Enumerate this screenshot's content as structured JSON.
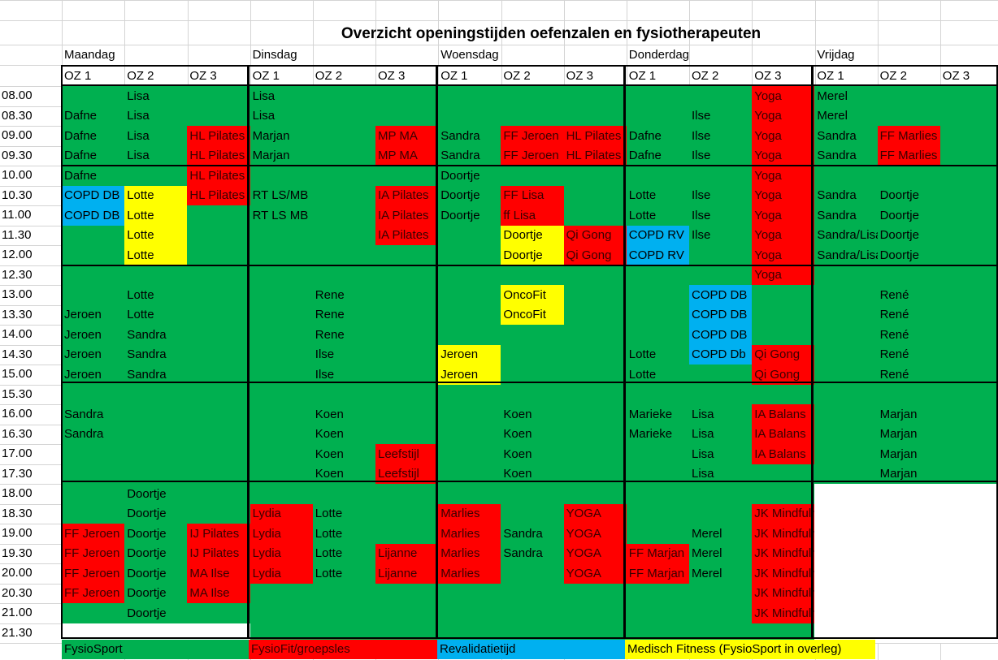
{
  "title": "Overzicht openingstijden oefenzalen en fysiotherapeuten",
  "days": [
    "Maandag",
    "Dinsdag",
    "Woensdag",
    "Donderdag",
    "Vrijdag"
  ],
  "zones": [
    "OZ 1",
    "OZ 2",
    "OZ 3"
  ],
  "times": [
    "08.00",
    "08.30",
    "09.00",
    "09.30",
    "10.00",
    "10.30",
    "11.00",
    "11.30",
    "12.00",
    "12.30",
    "13.00",
    "13.30",
    "14.00",
    "14.30",
    "15.00",
    "15.30",
    "16.00",
    "16.30",
    "17.00",
    "17.30",
    "18.00",
    "18.30",
    "19.00",
    "19.30",
    "20.00",
    "20.30",
    "21.00",
    "21.30"
  ],
  "colors": {
    "G": "#00b050",
    "R": "#ff0000",
    "B": "#00b0f0",
    "Y": "#ffff00",
    "W": "#ffffff"
  },
  "rows": [
    [
      "G",
      "G|Lisa",
      "G",
      "G|Lisa",
      "G",
      "G",
      "G",
      "G",
      "G",
      "G",
      "G",
      "R|Yoga",
      "G|Merel",
      "G",
      "G"
    ],
    [
      "G|Dafne",
      "G|Lisa",
      "G",
      "G|Lisa",
      "G",
      "G",
      "G",
      "G",
      "G",
      "G",
      "G|Ilse",
      "R|Yoga",
      "G|Merel",
      "G",
      "G"
    ],
    [
      "G|Dafne",
      "G|Lisa",
      "R|HL Pilates",
      "G|Marjan",
      "G",
      "R|MP MA",
      "G|Sandra",
      "R|FF Jeroen",
      "R|HL Pilates",
      "G|Dafne",
      "G|Ilse",
      "R|Yoga",
      "G|Sandra",
      "R|FF Marlies",
      "G"
    ],
    [
      "G|Dafne",
      "G|Lisa",
      "R|HL Pilates",
      "G|Marjan",
      "G",
      "R|MP MA",
      "G|Sandra",
      "R|FF Jeroen",
      "R|HL Pilates",
      "G|Dafne",
      "G|Ilse",
      "R|Yoga",
      "G|Sandra",
      "R|FF Marlies",
      "G"
    ],
    [
      "G|Dafne",
      "G",
      "R|HL Pilates",
      "G",
      "G",
      "G",
      "G|Doortje",
      "G",
      "G",
      "G",
      "G",
      "R|Yoga",
      "G",
      "G",
      "G"
    ],
    [
      "B|COPD DB",
      "Y|Lotte",
      "R|HL Pilates",
      "G|RT LS/MB",
      "G",
      "R|IA Pilates",
      "G|Doortje",
      "R|FF Lisa",
      "G",
      "G|Lotte",
      "G|Ilse",
      "R|Yoga",
      "G|Sandra",
      "G|Doortje",
      "G"
    ],
    [
      "B|COPD DB",
      "Y|Lotte",
      "G",
      "G|RT LS MB",
      "G",
      "R|IA Pilates",
      "G|Doortje",
      "R|ff Lisa",
      "G",
      "G|Lotte",
      "G|Ilse",
      "R|Yoga",
      "G|Sandra",
      "G|Doortje",
      "G"
    ],
    [
      "G",
      "Y|Lotte",
      "G",
      "G",
      "G",
      "R|IA Pilates",
      "G",
      "Y|Doortje",
      "R|Qi Gong",
      "B|COPD RV",
      "G|Ilse",
      "R|Yoga",
      "G|Sandra/Lisa",
      "G|Doortje",
      "G"
    ],
    [
      "G",
      "Y|Lotte",
      "G",
      "G",
      "G",
      "G",
      "G",
      "Y|Doortje",
      "R|Qi Gong",
      "B|COPD RV",
      "G",
      "R|Yoga",
      "G|Sandra/Lisa",
      "G|Doortje",
      "G"
    ],
    [
      "G",
      "G",
      "G",
      "G",
      "G",
      "G",
      "G",
      "G",
      "G",
      "G",
      "G",
      "R|Yoga",
      "G",
      "G",
      "G"
    ],
    [
      "G",
      "G|Lotte",
      "G",
      "G",
      "G|Rene",
      "G",
      "G",
      "Y|OncoFit",
      "G",
      "G",
      "B|COPD DB",
      "G",
      "G",
      "G|René",
      "G"
    ],
    [
      "G|Jeroen",
      "G|Lotte",
      "G",
      "G",
      "G|Rene",
      "G",
      "G",
      "Y|OncoFit",
      "G",
      "G",
      "B|COPD DB",
      "G",
      "G",
      "G|René",
      "G"
    ],
    [
      "G|Jeroen",
      "G|Sandra",
      "G",
      "G",
      "G|Rene",
      "G",
      "G",
      "G",
      "G",
      "G",
      "B|COPD DB",
      "G",
      "G",
      "G|René",
      "G"
    ],
    [
      "G|Jeroen",
      "G|Sandra",
      "G",
      "G",
      "G|Ilse",
      "G",
      "Y|Jeroen",
      "G",
      "G",
      "G|Lotte",
      "B|COPD Db",
      "R|Qi Gong",
      "G",
      "G|René",
      "G"
    ],
    [
      "G|Jeroen",
      "G|Sandra",
      "G",
      "G",
      "G|Ilse",
      "G",
      "Y|Jeroen",
      "G",
      "G",
      "G|Lotte",
      "G",
      "R|Qi Gong",
      "G",
      "G|René",
      "G"
    ],
    [
      "G",
      "G",
      "G",
      "G",
      "G",
      "G",
      "G",
      "G",
      "G",
      "G",
      "G",
      "G",
      "G",
      "G",
      "G"
    ],
    [
      "G|Sandra",
      "G",
      "G",
      "G",
      "G|Koen",
      "G",
      "G",
      "G|Koen",
      "G",
      "G|Marieke",
      "G|Lisa",
      "R|IA Balans",
      "G",
      "G|Marjan",
      "G"
    ],
    [
      "G|Sandra",
      "G",
      "G",
      "G",
      "G|Koen",
      "G",
      "G",
      "G|Koen",
      "G",
      "G|Marieke",
      "G|Lisa",
      "R|IA Balans",
      "G",
      "G|Marjan",
      "G"
    ],
    [
      "G",
      "G",
      "G",
      "G",
      "G|Koen",
      "R|Leefstijl",
      "G",
      "G|Koen",
      "G",
      "G",
      "G|Lisa",
      "R|IA Balans",
      "G",
      "G|Marjan",
      "G"
    ],
    [
      "G",
      "G",
      "G",
      "G",
      "G|Koen",
      "R|Leefstijl",
      "G",
      "G|Koen",
      "G",
      "G",
      "G|Lisa",
      "G",
      "G",
      "G|Marjan",
      "G"
    ],
    [
      "G",
      "G|Doortje",
      "G",
      "G",
      "G",
      "G",
      "G",
      "G",
      "G",
      "G",
      "G",
      "G",
      "W",
      "W",
      "W"
    ],
    [
      "G",
      "G|Doortje",
      "G",
      "R|Lydia",
      "G|Lotte",
      "G",
      "R|Marlies",
      "G",
      "R|YOGA",
      "G",
      "G",
      "R|JK Mindfulness",
      "W",
      "W",
      "W"
    ],
    [
      "R|FF Jeroen",
      "G|Doortje",
      "R|IJ Pilates",
      "R|Lydia",
      "G|Lotte",
      "G",
      "R|Marlies",
      "G|Sandra",
      "R|YOGA",
      "G",
      "G|Merel",
      "R|JK Mindfulness",
      "W",
      "W",
      "W"
    ],
    [
      "R|FF Jeroen",
      "G|Doortje",
      "R|IJ Pilates",
      "R|Lydia",
      "G|Lotte",
      "R|Lijanne",
      "R|Marlies",
      "G|Sandra",
      "R|YOGA",
      "R|FF Marjan",
      "G|Merel",
      "R|JK Mindfulness",
      "W",
      "W",
      "W"
    ],
    [
      "R|FF Jeroen",
      "G|Doortje",
      "R|MA Ilse",
      "R|Lydia",
      "G|Lotte",
      "R|Lijanne",
      "R|Marlies",
      "G",
      "R|YOGA",
      "R|FF Marjan",
      "G|Merel",
      "R|JK Mindfulness",
      "W",
      "W",
      "W"
    ],
    [
      "R|FF Jeroen",
      "G|Doortje",
      "R|MA Ilse",
      "G",
      "G",
      "G",
      "G",
      "G",
      "G",
      "G",
      "G",
      "R|JK Mindfulness",
      "W",
      "W",
      "W"
    ],
    [
      "G",
      "G|Doortje",
      "G",
      "G",
      "G",
      "G",
      "G",
      "G",
      "G",
      "G",
      "G",
      "R|JK Mindfulness",
      "W",
      "W",
      "W"
    ],
    [
      "W",
      "W",
      "W",
      "G",
      "G",
      "G",
      "G",
      "G",
      "G",
      "G",
      "G",
      "G",
      "W",
      "W",
      "W"
    ]
  ],
  "legend": [
    {
      "color": "G",
      "label": "FysioSport"
    },
    {
      "color": "R",
      "label": "FysioFit/groepsles"
    },
    {
      "color": "B",
      "label": "Revalidatietijd"
    },
    {
      "color": "Y",
      "label": "Medisch Fitness (FysioSport in overleg)"
    }
  ]
}
